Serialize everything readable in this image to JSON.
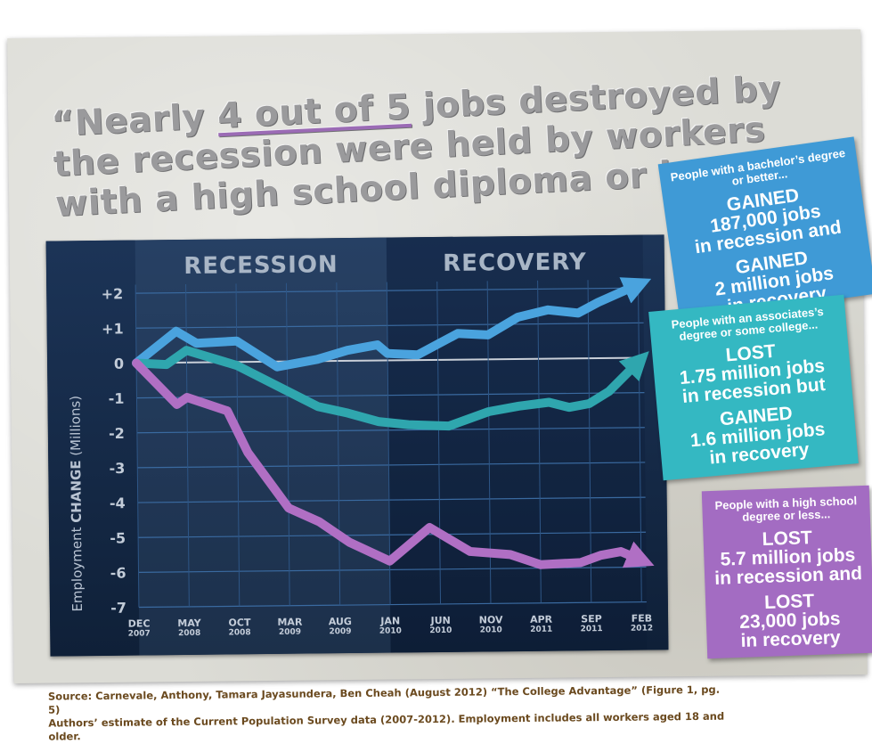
{
  "headline": {
    "open_quote": "“",
    "pre": "Nearly ",
    "highlight": "4 out of 5",
    "post": " jobs destroyed by the recession were held by workers with a high school diploma or less.",
    "close_quote": "”"
  },
  "notes": [
    {
      "intro": "People with a bachelor’s degree or better...",
      "line1": "GAINED",
      "line2": "187,000 jobs",
      "line3": "in recession and",
      "line4": "GAINED",
      "line5": "2 million jobs",
      "line6": "in recovery",
      "color": "#3f9ad6"
    },
    {
      "intro": "People with an associates’s degree or some college...",
      "line1": "LOST",
      "line2": "1.75 million jobs",
      "line3": "in recession but",
      "line4": "GAINED",
      "line5": "1.6 million jobs",
      "line6": "in recovery",
      "color": "#34b8c2"
    },
    {
      "intro": "People with a high school degree or less...",
      "line1": "LOST",
      "line2": "5.7 million jobs",
      "line3": "in recession and",
      "line4": "LOST",
      "line5": "23,000 jobs",
      "line6": "in recovery",
      "color": "#a36cc2"
    }
  ],
  "source": {
    "line1": "Source:  Carnevale, Anthony, Tamara Jayasundera, Ben Cheah (August 2012) “The College Advantage” (Figure 1, pg. 5)",
    "line2": "Authors’ estimate of the Current Population Survey data (2007-2012). Employment includes all workers aged 18 and older."
  },
  "chart_data": {
    "type": "line",
    "ylabel_prefix": "Employment ",
    "ylabel_bold": "CHANGE",
    "ylabel_suffix": " (Millions)",
    "ylim": [
      -7,
      2.5
    ],
    "yticks": [
      2,
      1,
      0,
      -1,
      -2,
      -3,
      -4,
      -5,
      -6,
      -7
    ],
    "ytick_labels": [
      "+2",
      "+1",
      "0",
      "-1",
      "-2",
      "-3",
      "-4",
      "-5",
      "-6",
      "-7"
    ],
    "xlim": [
      0,
      50.5
    ],
    "xticks": [
      {
        "x": 0,
        "top": "DEC",
        "bottom": "2007"
      },
      {
        "x": 5,
        "top": "MAY",
        "bottom": "2008"
      },
      {
        "x": 10,
        "top": "OCT",
        "bottom": "2008"
      },
      {
        "x": 15,
        "top": "MAR",
        "bottom": "2009"
      },
      {
        "x": 20,
        "top": "AUG",
        "bottom": "2009"
      },
      {
        "x": 25,
        "top": "JAN",
        "bottom": "2010"
      },
      {
        "x": 30,
        "top": "JUN",
        "bottom": "2010"
      },
      {
        "x": 35,
        "top": "NOV",
        "bottom": "2010"
      },
      {
        "x": 40,
        "top": "APR",
        "bottom": "2011"
      },
      {
        "x": 45,
        "top": "SEP",
        "bottom": "2011"
      },
      {
        "x": 50,
        "top": "FEB",
        "bottom": "2012"
      }
    ],
    "periods": [
      {
        "label": "RECESSION",
        "x_start": 0,
        "x_end": 25
      },
      {
        "label": "RECOVERY",
        "x_start": 25,
        "x_end": 50.5
      }
    ],
    "grid": true,
    "series": [
      {
        "key": "bachelors",
        "color": "#4aa3de",
        "x": [
          0,
          4,
          6,
          10,
          14,
          18,
          21,
          24,
          25,
          28,
          32,
          35,
          38,
          41,
          44,
          46,
          50
        ],
        "values": [
          0,
          0.9,
          0.55,
          0.6,
          -0.15,
          0.05,
          0.3,
          0.45,
          0.2,
          0.15,
          0.75,
          0.7,
          1.2,
          1.4,
          1.3,
          1.6,
          2.1
        ]
      },
      {
        "key": "associates",
        "color": "#2fa6ae",
        "x": [
          0,
          3,
          5,
          10,
          14,
          18,
          21,
          24,
          27,
          31,
          35,
          38,
          41,
          43,
          45,
          47,
          50
        ],
        "values": [
          0,
          -0.05,
          0.35,
          -0.1,
          -0.7,
          -1.3,
          -1.5,
          -1.75,
          -1.85,
          -1.9,
          -1.5,
          -1.35,
          -1.25,
          -1.4,
          -1.3,
          -0.95,
          -0.1
        ]
      },
      {
        "key": "highschool",
        "color": "#b06fc4",
        "x": [
          0,
          4,
          5,
          9,
          11,
          15,
          18,
          21,
          25,
          29,
          33,
          37,
          40,
          44,
          46,
          48,
          50
        ],
        "values": [
          0,
          -1.2,
          -1.0,
          -1.4,
          -2.6,
          -4.2,
          -4.6,
          -5.2,
          -5.75,
          -4.8,
          -5.5,
          -5.6,
          -5.9,
          -5.85,
          -5.65,
          -5.55,
          -5.8
        ]
      }
    ]
  }
}
